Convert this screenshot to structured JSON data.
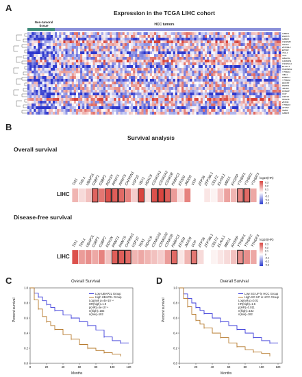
{
  "panel_a": {
    "letter": "A",
    "title": "Expression in the TCGA LIHC cohort",
    "group_non_tumoral": "Non-tumoral tissue",
    "group_tumor": "HCC tumors",
    "row_labels": [
      "G3BP1",
      "PRMT5",
      "G3BP2",
      "CSNK2B",
      "CELF2",
      "ZFP36L1",
      "EP300",
      "TIAL1",
      "TIA1",
      "UBAP2L",
      "CAPRIN1",
      "CSNK2A1",
      "ELAVL1",
      "HNRNPA1",
      "YTHDF1",
      "YBX1",
      "PABPC1",
      "YTHDF2",
      "DDX3X",
      "PRMT1",
      "JMJD6",
      "KHSRP",
      "VCP",
      "USP10",
      "HDAC6",
      "ZFP36",
      "YTHDF3",
      "ATXN2",
      "SMN1",
      "G3BP3"
    ]
  },
  "panel_b": {
    "letter": "B",
    "title": "Survival analysis",
    "overall_label": "Overall survival",
    "dfs_label": "Disease-free survival",
    "row_label": "LIHC",
    "genes": [
      "TIA1",
      "TIAL1",
      "UBAP2L",
      "G3BP1",
      "G3BP2",
      "DDX3X",
      "PRMT1",
      "PRMT5",
      "CAPRIN1",
      "USP10",
      "YBX1",
      "HDAC6",
      "CSNK2A1",
      "CSNK2A2",
      "CSNK2B",
      "PABPC1",
      "EP300",
      "JMJD6",
      "VCP",
      "ZFP36",
      "ZFP36L1",
      "CELF2",
      "ELAVL1",
      "MBS1",
      "KHSRP",
      "YTHDF1",
      "YTHDF2",
      "YTHDF3"
    ],
    "scale_title": "log10(HR)",
    "scale_ticks": [
      "0.3",
      "0.2",
      "0.1",
      "0",
      "-0.1",
      "-0.2",
      "-0.3"
    ],
    "overall_values": [
      0.12,
      0.06,
      0.1,
      0.25,
      0.22,
      0.28,
      0.26,
      0.24,
      0.2,
      0.08,
      0.3,
      0.05,
      0.28,
      0.3,
      0.26,
      0.16,
      0.05,
      0.2,
      0.0,
      0.0,
      0.04,
      0.02,
      0.08,
      0.15,
      0.12,
      0.2,
      0.24,
      0.14
    ],
    "overall_boxed": [
      false,
      false,
      false,
      true,
      false,
      true,
      true,
      true,
      false,
      false,
      true,
      false,
      true,
      true,
      true,
      false,
      false,
      false,
      false,
      false,
      false,
      false,
      false,
      false,
      false,
      true,
      true,
      false
    ],
    "dfs_values": [
      0.28,
      0.16,
      0.18,
      0.14,
      0.2,
      0.1,
      0.26,
      0.26,
      0.24,
      0.12,
      0.14,
      0.12,
      0.1,
      0.08,
      0.16,
      0.24,
      0.04,
      0.12,
      0.22,
      0.06,
      0.0,
      0.02,
      0.04,
      0.06,
      0.1,
      0.18,
      0.18,
      0.14
    ],
    "dfs_boxed": [
      false,
      false,
      false,
      false,
      false,
      false,
      true,
      true,
      true,
      false,
      false,
      false,
      false,
      false,
      false,
      true,
      false,
      false,
      true,
      false,
      false,
      false,
      false,
      false,
      false,
      true,
      false,
      false
    ]
  },
  "panel_c": {
    "letter": "C",
    "title": "Overall Survival",
    "ylabel": "Percent survival",
    "xlabel": "Months",
    "legend": [
      "Low UBAP2L Group",
      "High UBAP2L Group",
      "Logrank p=4e-10⁻⁴",
      "HR(high)=1.9",
      "p(HR)=4e-10⁻⁴",
      "n(high)=182",
      "n(low)=182"
    ]
  },
  "panel_d": {
    "letter": "D",
    "title": "Overall Survival",
    "ylabel": "Percent survival",
    "xlabel": "Months",
    "legend": [
      "Low SG UP in HCC Group",
      "High SG UP in HCC Group",
      "Logrank p=0.01",
      "HR(high)=1.6",
      "p(HR)=0.011",
      "n(high)=182",
      "n(low)=182"
    ]
  },
  "km_axis": {
    "yticks": [
      "1.0",
      "0.8",
      "0.6",
      "0.4",
      "0.2",
      "0.0"
    ],
    "xticks": [
      "0",
      "20",
      "40",
      "60",
      "80",
      "100",
      "120"
    ]
  },
  "chart_data": [
    {
      "type": "line",
      "title": "Overall Survival",
      "xlabel": "Months",
      "ylabel": "Percent survival",
      "xlim": [
        0,
        125
      ],
      "ylim": [
        0,
        1
      ],
      "series": [
        {
          "name": "Low UBAP2L Group",
          "x": [
            0,
            5,
            10,
            15,
            20,
            25,
            30,
            40,
            50,
            60,
            70,
            80,
            90,
            100,
            110,
            120
          ],
          "values": [
            1.0,
            0.93,
            0.88,
            0.83,
            0.78,
            0.74,
            0.7,
            0.64,
            0.6,
            0.55,
            0.5,
            0.44,
            0.35,
            0.3,
            0.27,
            0.27
          ]
        },
        {
          "name": "High UBAP2L Group",
          "x": [
            0,
            5,
            10,
            15,
            20,
            25,
            30,
            40,
            50,
            60,
            70,
            80,
            90,
            100,
            110
          ],
          "values": [
            1.0,
            0.84,
            0.72,
            0.62,
            0.55,
            0.5,
            0.45,
            0.38,
            0.32,
            0.25,
            0.2,
            0.17,
            0.14,
            0.12,
            0.1
          ]
        }
      ]
    },
    {
      "type": "line",
      "title": "Overall Survival",
      "xlabel": "Months",
      "ylabel": "Percent survival",
      "xlim": [
        0,
        125
      ],
      "ylim": [
        0,
        1
      ],
      "series": [
        {
          "name": "Low SG UP in HCC Group",
          "x": [
            0,
            5,
            10,
            15,
            20,
            25,
            30,
            40,
            50,
            60,
            70,
            80,
            90,
            100,
            110,
            120
          ],
          "values": [
            1.0,
            0.92,
            0.86,
            0.8,
            0.74,
            0.7,
            0.66,
            0.6,
            0.55,
            0.5,
            0.45,
            0.4,
            0.34,
            0.3,
            0.27,
            0.27
          ]
        },
        {
          "name": "High SG UP in HCC Group",
          "x": [
            0,
            5,
            10,
            15,
            20,
            25,
            30,
            40,
            50,
            60,
            70,
            80,
            90,
            100,
            110
          ],
          "values": [
            1.0,
            0.86,
            0.75,
            0.65,
            0.57,
            0.52,
            0.47,
            0.4,
            0.34,
            0.27,
            0.22,
            0.18,
            0.15,
            0.13,
            0.1
          ]
        }
      ]
    }
  ],
  "colors": {
    "low": "#3b3bd9",
    "high": "#b5782a",
    "heat_high": "#d9453f",
    "heat_low": "#2c3ccf",
    "bar_normal": "#3d8a7a",
    "bar_tumor": "#8a90d8"
  }
}
